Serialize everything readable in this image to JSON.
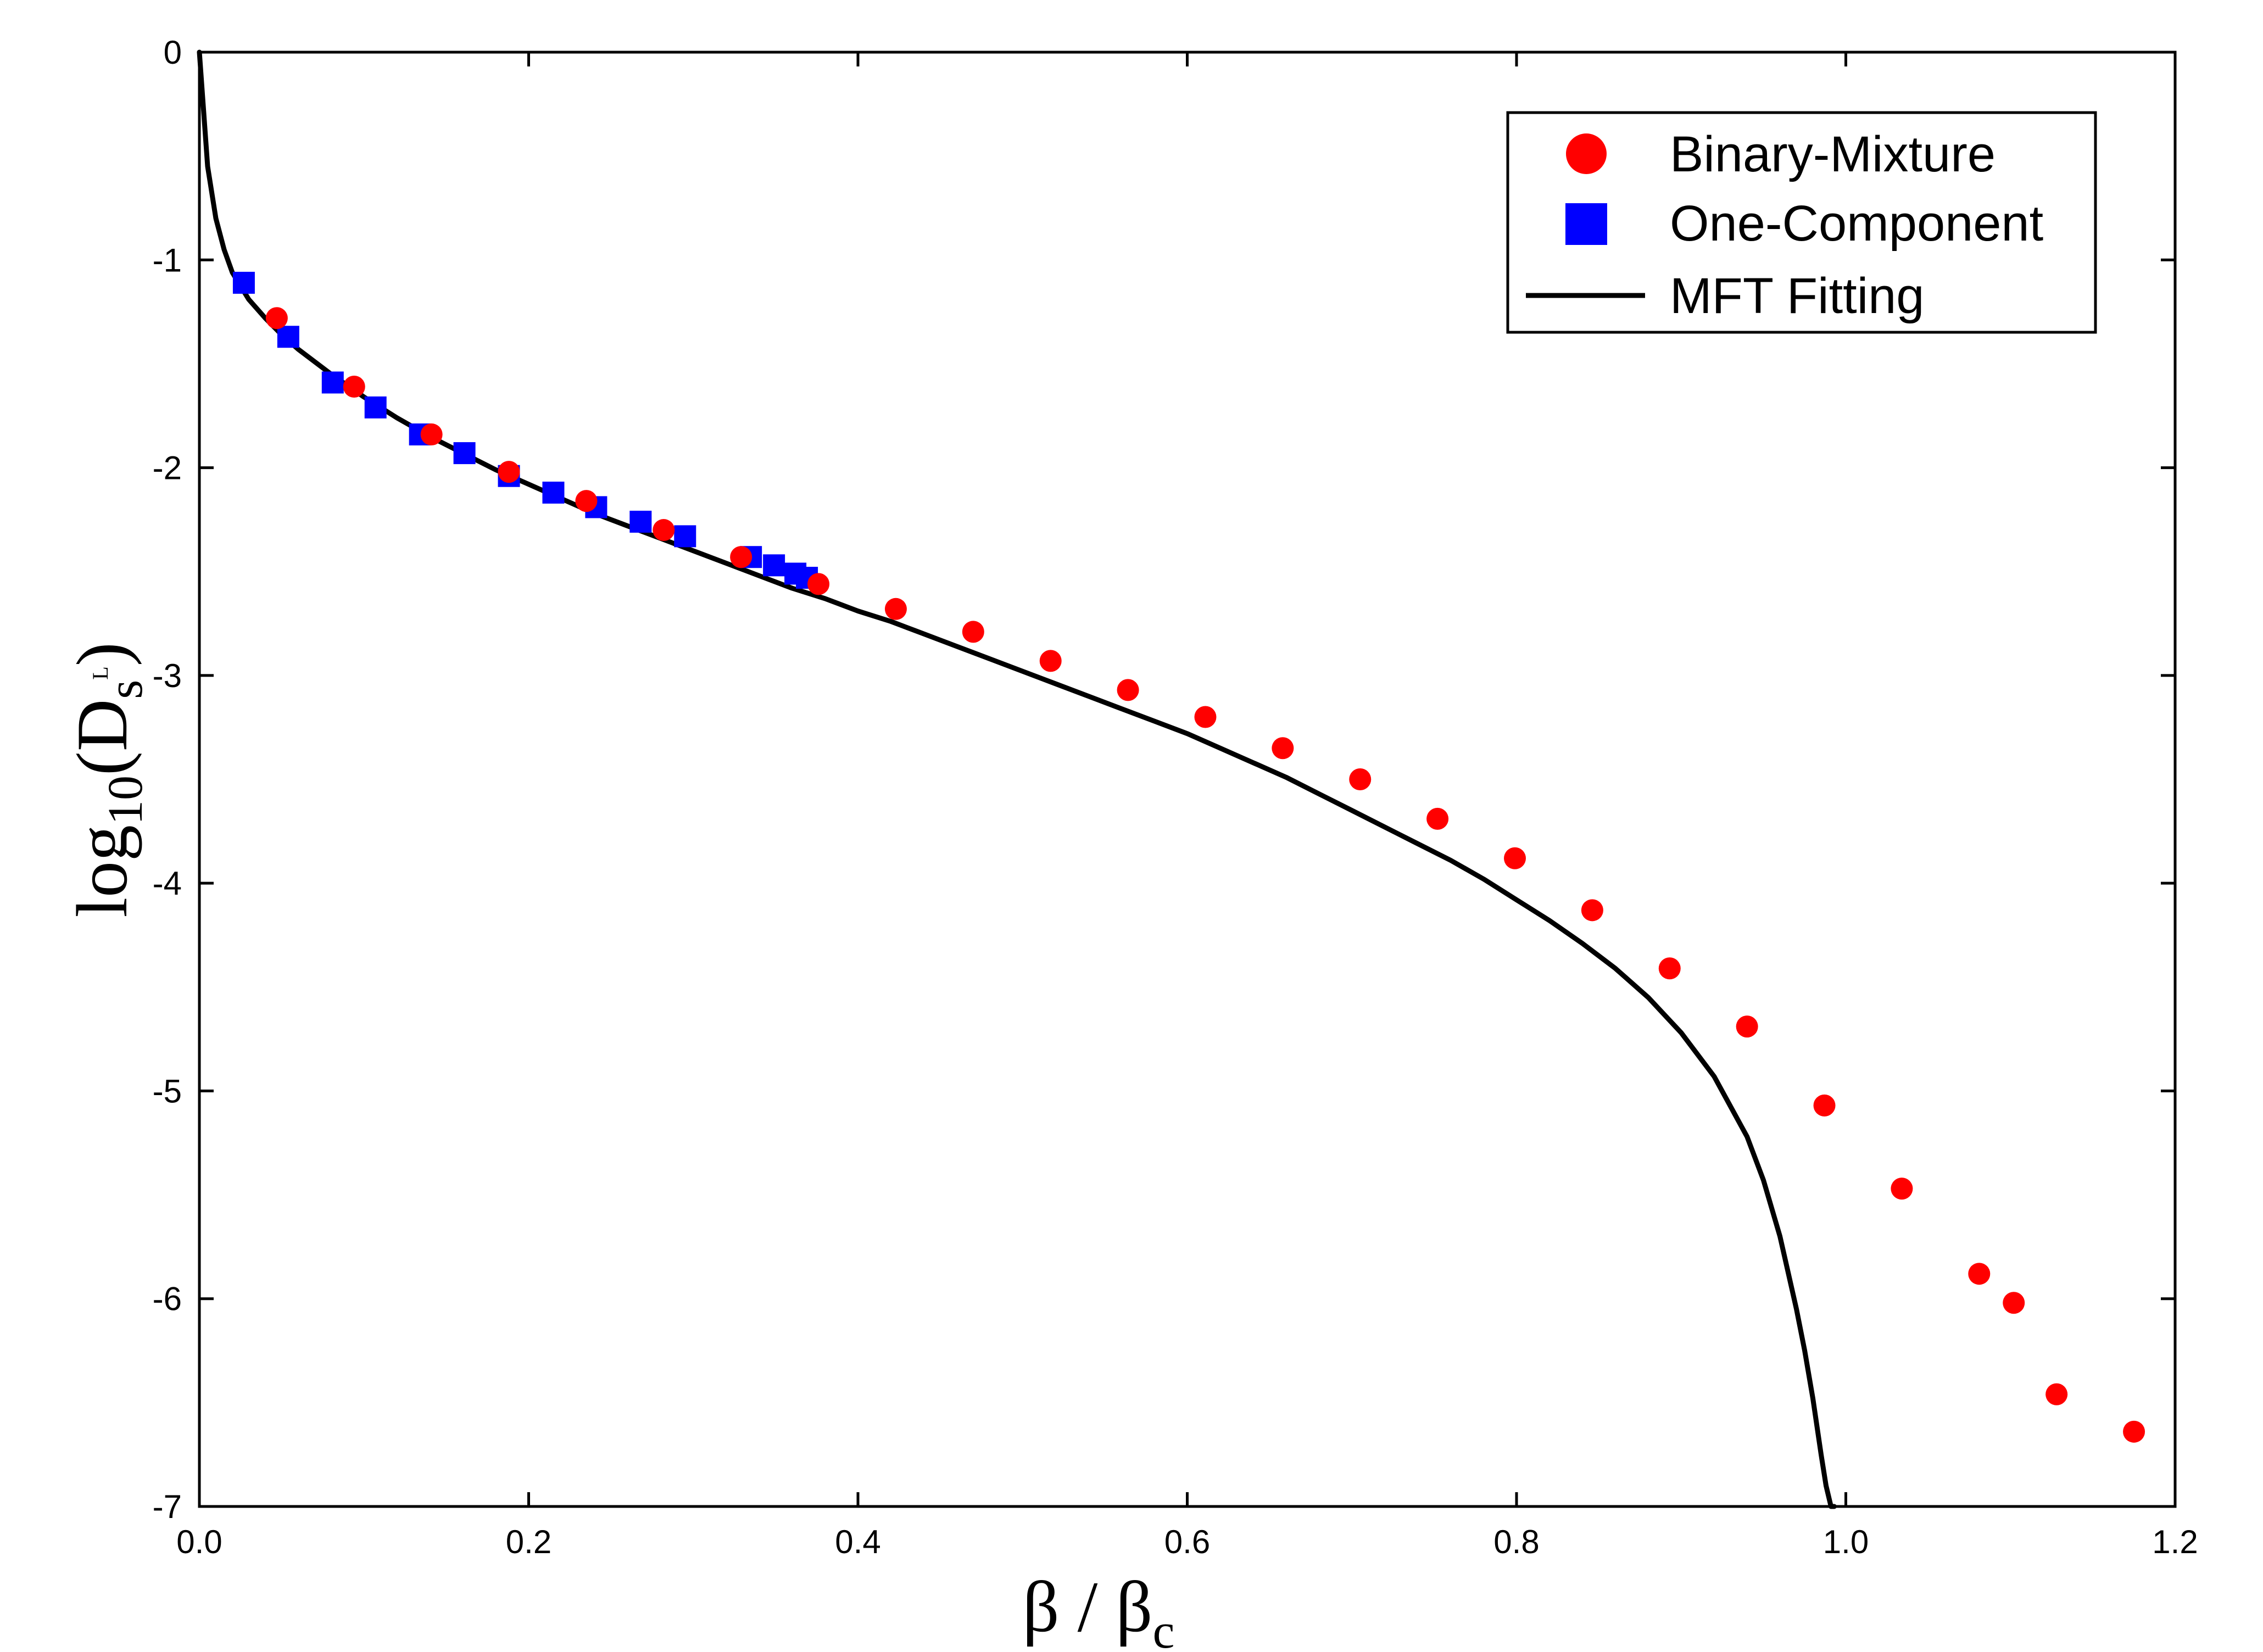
{
  "chart_data": {
    "type": "scatter",
    "xlabel": "β / β",
    "xlabel_sub": "c",
    "ylabel_prefix": "log",
    "ylabel_prefix_sub": "10",
    "ylabel_main": "(D",
    "ylabel_sub": "s",
    "ylabel_sup": "L",
    "ylabel_close": ")",
    "xlim": [
      0.0,
      1.2
    ],
    "ylim": [
      -7,
      0
    ],
    "x_ticks": [
      0.0,
      0.2,
      0.4,
      0.6,
      0.8,
      1.0,
      1.2
    ],
    "x_tick_labels": [
      "0.0",
      "0.2",
      "0.4",
      "0.6",
      "0.8",
      "1.0",
      "1.2"
    ],
    "y_ticks": [
      0,
      -1,
      -2,
      -3,
      -4,
      -5,
      -6,
      -7
    ],
    "y_tick_labels": [
      "0",
      "-1",
      "-2",
      "-3",
      "-4",
      "-5",
      "-6",
      "-7"
    ],
    "grid": false,
    "legend_position": "top-right",
    "series": [
      {
        "name": "Binary-Mixture",
        "marker": "circle",
        "color": "#ff0000",
        "x": [
          0.047,
          0.094,
          0.141,
          0.188,
          0.235,
          0.282,
          0.329,
          0.376,
          0.423,
          0.47,
          0.517,
          0.564,
          0.611,
          0.658,
          0.705,
          0.752,
          0.799,
          0.846,
          0.893,
          0.94,
          0.987,
          1.034,
          1.081,
          1.102,
          1.128,
          1.175
        ],
        "y": [
          -1.28,
          -1.61,
          -1.84,
          -2.02,
          -2.16,
          -2.3,
          -2.43,
          -2.56,
          -2.68,
          -2.79,
          -2.93,
          -3.07,
          -3.2,
          -3.35,
          -3.5,
          -3.69,
          -3.88,
          -4.13,
          -4.41,
          -4.69,
          -5.07,
          -5.47,
          -5.88,
          -6.02,
          -6.46,
          -6.64
        ]
      },
      {
        "name": "One-Component",
        "marker": "square",
        "color": "#0000ff",
        "x": [
          0.027,
          0.054,
          0.081,
          0.107,
          0.134,
          0.161,
          0.188,
          0.215,
          0.241,
          0.268,
          0.295,
          0.335,
          0.349,
          0.362,
          0.369
        ],
        "y": [
          -1.11,
          -1.37,
          -1.59,
          -1.71,
          -1.84,
          -1.93,
          -2.04,
          -2.12,
          -2.19,
          -2.26,
          -2.33,
          -2.43,
          -2.47,
          -2.51,
          -2.53
        ]
      },
      {
        "name": "MFT Fitting",
        "marker": "line",
        "color": "#000000",
        "x": [
          0.0,
          0.005,
          0.01,
          0.015,
          0.02,
          0.03,
          0.04,
          0.05,
          0.06,
          0.08,
          0.1,
          0.12,
          0.14,
          0.16,
          0.18,
          0.2,
          0.22,
          0.24,
          0.26,
          0.28,
          0.3,
          0.32,
          0.34,
          0.36,
          0.38,
          0.4,
          0.42,
          0.44,
          0.46,
          0.48,
          0.5,
          0.52,
          0.54,
          0.56,
          0.58,
          0.6,
          0.62,
          0.64,
          0.66,
          0.68,
          0.7,
          0.72,
          0.74,
          0.76,
          0.78,
          0.8,
          0.82,
          0.84,
          0.86,
          0.88,
          0.9,
          0.92,
          0.94,
          0.95,
          0.96,
          0.97,
          0.975,
          0.98,
          0.985,
          0.988,
          0.991,
          0.993
        ],
        "y": [
          0.0,
          -0.55,
          -0.8,
          -0.95,
          -1.06,
          -1.19,
          -1.28,
          -1.36,
          -1.43,
          -1.55,
          -1.66,
          -1.76,
          -1.85,
          -1.93,
          -2.01,
          -2.08,
          -2.15,
          -2.22,
          -2.28,
          -2.34,
          -2.4,
          -2.46,
          -2.52,
          -2.58,
          -2.63,
          -2.69,
          -2.74,
          -2.8,
          -2.86,
          -2.92,
          -2.98,
          -3.04,
          -3.1,
          -3.16,
          -3.22,
          -3.28,
          -3.35,
          -3.42,
          -3.49,
          -3.57,
          -3.65,
          -3.73,
          -3.81,
          -3.89,
          -3.98,
          -4.08,
          -4.18,
          -4.29,
          -4.41,
          -4.55,
          -4.72,
          -4.93,
          -5.22,
          -5.43,
          -5.7,
          -6.05,
          -6.25,
          -6.48,
          -6.75,
          -6.9,
          -7.0,
          -7.0
        ]
      }
    ]
  }
}
